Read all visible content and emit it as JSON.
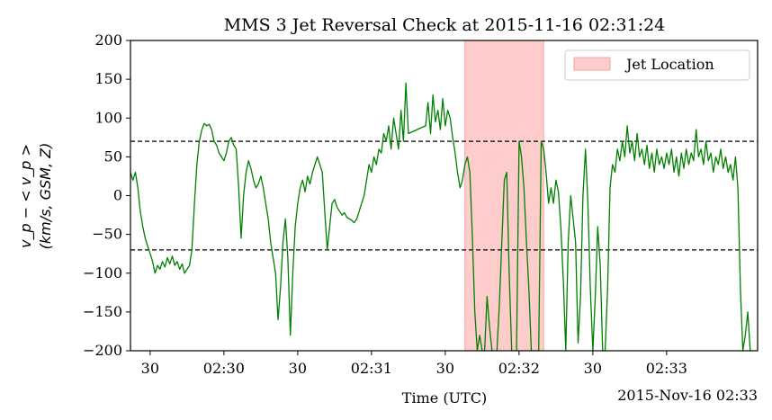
{
  "chart_data": {
    "type": "line",
    "title": "MMS 3 Jet Reversal Check at 2015-11-16 02:31:24",
    "xlabel": "Time (UTC)",
    "ylabel_line1": "v_p − < v_p >",
    "ylabel_line2": "(km/s, GSM, Z)",
    "offset_label": "2015-Nov-16 02:33",
    "xlim": [
      "02:29:22",
      "02:33:37"
    ],
    "ylim": [
      -200,
      200
    ],
    "x_tick_labels": [
      {
        "t": "02:29:30",
        "label": "30"
      },
      {
        "t": "02:30:00",
        "label": "02:30"
      },
      {
        "t": "02:30:30",
        "label": "30"
      },
      {
        "t": "02:31:00",
        "label": "02:31"
      },
      {
        "t": "02:31:30",
        "label": "30"
      },
      {
        "t": "02:32:00",
        "label": "02:32"
      },
      {
        "t": "02:32:30",
        "label": "30"
      },
      {
        "t": "02:33:00",
        "label": "02:33"
      }
    ],
    "y_ticks": [
      -200,
      -150,
      -100,
      -50,
      0,
      50,
      100,
      150,
      200
    ],
    "y_tick_labels": [
      "−200",
      "−150",
      "−100",
      "−50",
      "0",
      "50",
      "100",
      "150",
      "200"
    ],
    "threshold_lines": [
      70,
      -70
    ],
    "jet_region": {
      "start": "02:31:38",
      "end": "02:32:10",
      "label": "Jet Location",
      "color": "#ffcccc"
    },
    "series": [
      {
        "color": "#008000",
        "points": [
          [
            "02:29:22",
            30
          ],
          [
            "02:29:23",
            20
          ],
          [
            "02:29:24",
            30
          ],
          [
            "02:29:25",
            10
          ],
          [
            "02:29:26",
            -20
          ],
          [
            "02:29:27",
            -40
          ],
          [
            "02:29:28",
            -55
          ],
          [
            "02:29:29",
            -65
          ],
          [
            "02:29:30",
            -75
          ],
          [
            "02:29:31",
            -85
          ],
          [
            "02:29:32",
            -100
          ],
          [
            "02:29:33",
            -90
          ],
          [
            "02:29:34",
            -95
          ],
          [
            "02:29:35",
            -85
          ],
          [
            "02:29:36",
            -92
          ],
          [
            "02:29:37",
            -80
          ],
          [
            "02:29:38",
            -88
          ],
          [
            "02:29:39",
            -78
          ],
          [
            "02:29:40",
            -90
          ],
          [
            "02:29:41",
            -85
          ],
          [
            "02:29:42",
            -95
          ],
          [
            "02:29:43",
            -88
          ],
          [
            "02:29:44",
            -100
          ],
          [
            "02:29:45",
            -95
          ],
          [
            "02:29:46",
            -90
          ],
          [
            "02:29:47",
            -70
          ],
          [
            "02:29:48",
            -10
          ],
          [
            "02:29:49",
            40
          ],
          [
            "02:29:50",
            70
          ],
          [
            "02:29:51",
            85
          ],
          [
            "02:29:52",
            93
          ],
          [
            "02:29:53",
            90
          ],
          [
            "02:29:54",
            92
          ],
          [
            "02:29:55",
            85
          ],
          [
            "02:29:56",
            70
          ],
          [
            "02:29:57",
            65
          ],
          [
            "02:29:58",
            55
          ],
          [
            "02:29:59",
            50
          ],
          [
            "02:30:00",
            45
          ],
          [
            "02:30:01",
            55
          ],
          [
            "02:30:02",
            70
          ],
          [
            "02:30:03",
            75
          ],
          [
            "02:30:04",
            65
          ],
          [
            "02:30:05",
            60
          ],
          [
            "02:30:06",
            10
          ],
          [
            "02:30:07",
            -55
          ],
          [
            "02:30:08",
            0
          ],
          [
            "02:30:09",
            30
          ],
          [
            "02:30:10",
            45
          ],
          [
            "02:30:11",
            35
          ],
          [
            "02:30:12",
            20
          ],
          [
            "02:30:13",
            10
          ],
          [
            "02:30:14",
            15
          ],
          [
            "02:30:15",
            25
          ],
          [
            "02:30:16",
            10
          ],
          [
            "02:30:17",
            -10
          ],
          [
            "02:30:18",
            -30
          ],
          [
            "02:30:19",
            -60
          ],
          [
            "02:30:20",
            -80
          ],
          [
            "02:30:21",
            -100
          ],
          [
            "02:30:22",
            -160
          ],
          [
            "02:30:23",
            -120
          ],
          [
            "02:30:24",
            -60
          ],
          [
            "02:30:25",
            -30
          ],
          [
            "02:30:26",
            -80
          ],
          [
            "02:30:27",
            -180
          ],
          [
            "02:30:28",
            -100
          ],
          [
            "02:30:29",
            -40
          ],
          [
            "02:30:30",
            -10
          ],
          [
            "02:30:31",
            10
          ],
          [
            "02:30:32",
            20
          ],
          [
            "02:30:33",
            5
          ],
          [
            "02:30:34",
            25
          ],
          [
            "02:30:35",
            15
          ],
          [
            "02:30:36",
            30
          ],
          [
            "02:30:37",
            40
          ],
          [
            "02:30:38",
            50
          ],
          [
            "02:30:39",
            40
          ],
          [
            "02:30:40",
            30
          ],
          [
            "02:30:41",
            -20
          ],
          [
            "02:30:42",
            -70
          ],
          [
            "02:30:43",
            -40
          ],
          [
            "02:30:44",
            -10
          ],
          [
            "02:30:45",
            -5
          ],
          [
            "02:30:46",
            -15
          ],
          [
            "02:30:47",
            -20
          ],
          [
            "02:30:48",
            -25
          ],
          [
            "02:30:49",
            -22
          ],
          [
            "02:30:50",
            -28
          ],
          [
            "02:30:51",
            -30
          ],
          [
            "02:30:52",
            -32
          ],
          [
            "02:30:53",
            -35
          ],
          [
            "02:30:54",
            -30
          ],
          [
            "02:30:55",
            -20
          ],
          [
            "02:30:56",
            -10
          ],
          [
            "02:30:57",
            0
          ],
          [
            "02:30:58",
            20
          ],
          [
            "02:30:59",
            40
          ],
          [
            "02:31:00",
            30
          ],
          [
            "02:31:01",
            50
          ],
          [
            "02:31:02",
            40
          ],
          [
            "02:31:03",
            60
          ],
          [
            "02:31:04",
            55
          ],
          [
            "02:31:05",
            80
          ],
          [
            "02:31:06",
            70
          ],
          [
            "02:31:07",
            90
          ],
          [
            "02:31:08",
            60
          ],
          [
            "02:31:09",
            100
          ],
          [
            "02:31:10",
            80
          ],
          [
            "02:31:11",
            60
          ],
          [
            "02:31:12",
            110
          ],
          [
            "02:31:13",
            70
          ],
          [
            "02:31:14",
            145
          ],
          [
            "02:31:15",
            80
          ],
          [
            "02:31:22",
            90
          ],
          [
            "02:31:23",
            120
          ],
          [
            "02:31:24",
            80
          ],
          [
            "02:31:25",
            130
          ],
          [
            "02:31:26",
            95
          ],
          [
            "02:31:27",
            110
          ],
          [
            "02:31:28",
            85
          ],
          [
            "02:31:29",
            125
          ],
          [
            "02:31:30",
            90
          ],
          [
            "02:31:31",
            110
          ],
          [
            "02:31:32",
            100
          ],
          [
            "02:31:33",
            75
          ],
          [
            "02:31:34",
            55
          ],
          [
            "02:31:35",
            30
          ],
          [
            "02:31:36",
            10
          ],
          [
            "02:31:37",
            20
          ],
          [
            "02:31:38",
            40
          ],
          [
            "02:31:39",
            50
          ],
          [
            "02:31:40",
            30
          ],
          [
            "02:31:41",
            -50
          ],
          [
            "02:31:42",
            -150
          ],
          [
            "02:31:43",
            -200
          ],
          [
            "02:31:44",
            -180
          ],
          [
            "02:31:45",
            -200
          ],
          [
            "02:31:46",
            -200
          ],
          [
            "02:31:47",
            -130
          ],
          [
            "02:31:48",
            -170
          ],
          [
            "02:31:49",
            -200
          ],
          [
            "02:31:50",
            -200
          ],
          [
            "02:31:51",
            -200
          ],
          [
            "02:31:52",
            -140
          ],
          [
            "02:31:53",
            -60
          ],
          [
            "02:31:54",
            20
          ],
          [
            "02:31:55",
            30
          ],
          [
            "02:31:56",
            -100
          ],
          [
            "02:31:57",
            -200
          ],
          [
            "02:31:58",
            -200
          ],
          [
            "02:31:59",
            -200
          ],
          [
            "02:32:00",
            70
          ],
          [
            "02:32:01",
            50
          ],
          [
            "02:32:02",
            10
          ],
          [
            "02:32:03",
            -60
          ],
          [
            "02:32:04",
            -120
          ],
          [
            "02:32:05",
            -200
          ],
          [
            "02:32:06",
            -200
          ],
          [
            "02:32:07",
            -200
          ],
          [
            "02:32:08",
            -200
          ],
          [
            "02:32:09",
            70
          ],
          [
            "02:32:10",
            60
          ],
          [
            "02:32:11",
            30
          ],
          [
            "02:32:12",
            -10
          ],
          [
            "02:32:13",
            10
          ],
          [
            "02:32:14",
            -10
          ],
          [
            "02:32:15",
            20
          ],
          [
            "02:32:16",
            5
          ],
          [
            "02:32:17",
            -40
          ],
          [
            "02:32:18",
            -110
          ],
          [
            "02:32:19",
            -200
          ],
          [
            "02:32:20",
            -60
          ],
          [
            "02:32:21",
            0
          ],
          [
            "02:32:22",
            -30
          ],
          [
            "02:32:23",
            -60
          ],
          [
            "02:32:24",
            -190
          ],
          [
            "02:32:25",
            -130
          ],
          [
            "02:32:26",
            0
          ],
          [
            "02:32:27",
            60
          ],
          [
            "02:32:28",
            -10
          ],
          [
            "02:32:29",
            -120
          ],
          [
            "02:32:30",
            -200
          ],
          [
            "02:32:31",
            -130
          ],
          [
            "02:32:32",
            -40
          ],
          [
            "02:32:33",
            -90
          ],
          [
            "02:32:34",
            -200
          ],
          [
            "02:32:35",
            -200
          ],
          [
            "02:32:36",
            -120
          ],
          [
            "02:32:37",
            10
          ],
          [
            "02:32:38",
            40
          ],
          [
            "02:32:39",
            30
          ],
          [
            "02:32:40",
            60
          ],
          [
            "02:32:41",
            45
          ],
          [
            "02:32:42",
            70
          ],
          [
            "02:32:43",
            50
          ],
          [
            "02:32:44",
            90
          ],
          [
            "02:32:45",
            55
          ],
          [
            "02:32:46",
            70
          ],
          [
            "02:32:47",
            45
          ],
          [
            "02:32:48",
            80
          ],
          [
            "02:32:49",
            50
          ],
          [
            "02:32:50",
            60
          ],
          [
            "02:32:51",
            40
          ],
          [
            "02:32:52",
            65
          ],
          [
            "02:32:53",
            35
          ],
          [
            "02:32:54",
            55
          ],
          [
            "02:32:55",
            30
          ],
          [
            "02:32:56",
            60
          ],
          [
            "02:32:57",
            40
          ],
          [
            "02:32:58",
            50
          ],
          [
            "02:32:59",
            35
          ],
          [
            "02:33:00",
            55
          ],
          [
            "02:33:01",
            40
          ],
          [
            "02:33:02",
            60
          ],
          [
            "02:33:03",
            30
          ],
          [
            "02:33:04",
            50
          ],
          [
            "02:33:05",
            25
          ],
          [
            "02:33:06",
            55
          ],
          [
            "02:33:07",
            35
          ],
          [
            "02:33:08",
            60
          ],
          [
            "02:33:09",
            40
          ],
          [
            "02:33:10",
            55
          ],
          [
            "02:33:11",
            45
          ],
          [
            "02:33:12",
            85
          ],
          [
            "02:33:13",
            50
          ],
          [
            "02:33:14",
            60
          ],
          [
            "02:33:15",
            40
          ],
          [
            "02:33:16",
            70
          ],
          [
            "02:33:17",
            45
          ],
          [
            "02:33:18",
            55
          ],
          [
            "02:33:19",
            30
          ],
          [
            "02:33:20",
            50
          ],
          [
            "02:33:21",
            40
          ],
          [
            "02:33:22",
            60
          ],
          [
            "02:33:23",
            35
          ],
          [
            "02:33:24",
            50
          ],
          [
            "02:33:25",
            30
          ],
          [
            "02:33:26",
            40
          ],
          [
            "02:33:27",
            20
          ],
          [
            "02:33:28",
            50
          ],
          [
            "02:33:29",
            10
          ],
          [
            "02:33:30",
            -120
          ],
          [
            "02:33:31",
            -200
          ],
          [
            "02:33:32",
            -180
          ],
          [
            "02:33:33",
            -150
          ],
          [
            "02:33:34",
            -200
          ],
          [
            "02:33:35",
            -200
          ]
        ]
      }
    ]
  }
}
